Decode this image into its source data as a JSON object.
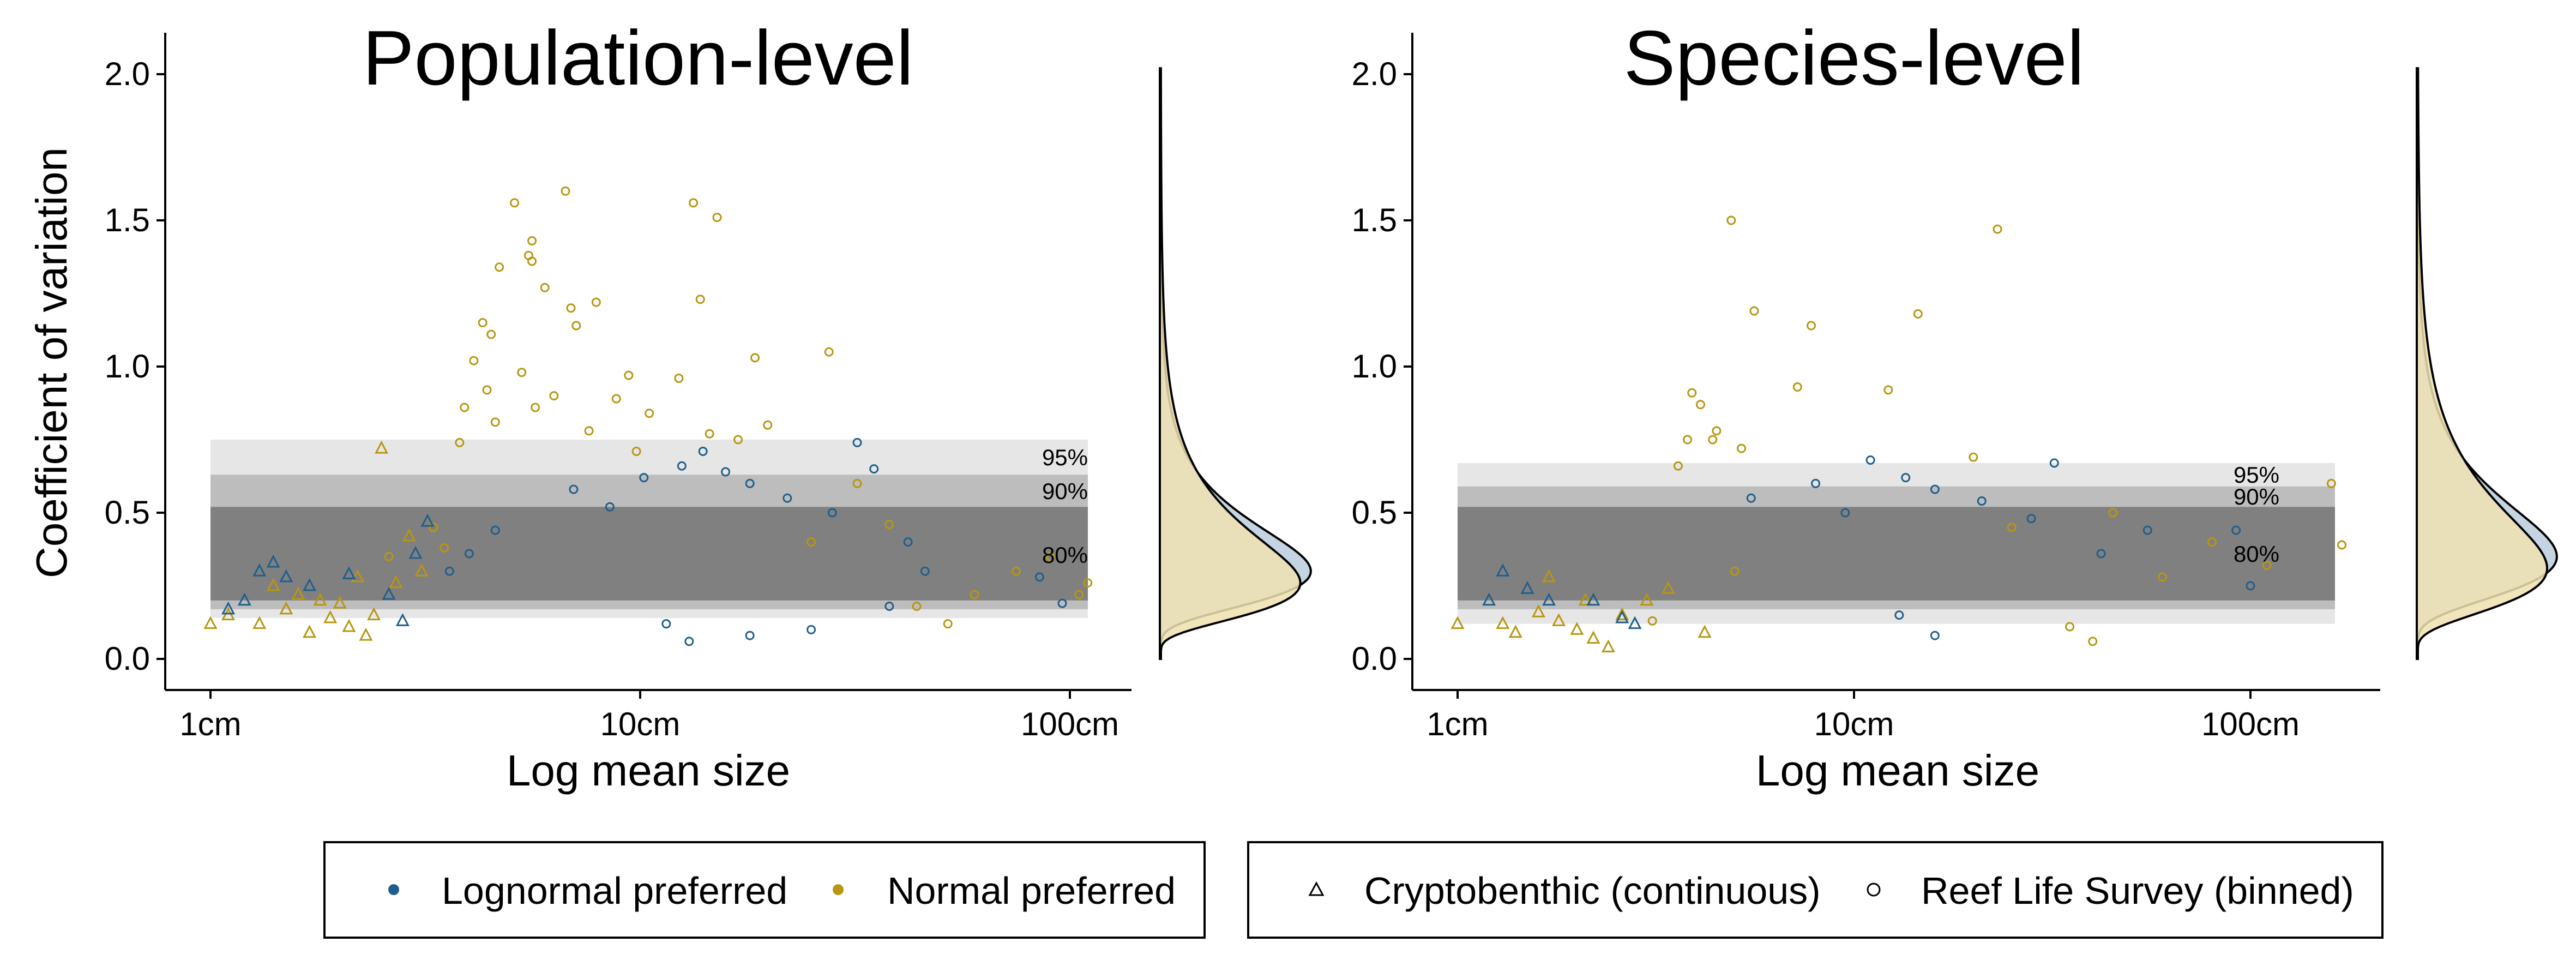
{
  "colors": {
    "lognormal": "#1f5f8b",
    "normal": "#b8960f",
    "band95": "#e6e6e6",
    "band90": "#bdbdbd",
    "band80": "#808080",
    "density_lognormal_fill": "#c5d4e3",
    "density_normal_fill": "#efe0b0",
    "density_overlap_fill": "#c9c9a6"
  },
  "legend": {
    "color_items": [
      {
        "label": "Lognormal preferred",
        "color_key": "lognormal",
        "shape": "dot"
      },
      {
        "label": "Normal preferred",
        "color_key": "normal",
        "shape": "dot"
      }
    ],
    "shape_items": [
      {
        "label": "Cryptobenthic (continuous)",
        "shape": "triangle"
      },
      {
        "label": "Reef Life Survey (binned)",
        "shape": "circle"
      }
    ]
  },
  "chart_data": [
    {
      "type": "scatter",
      "title": "Population-level",
      "xlabel": "Log mean size",
      "ylabel": "Coefficient of variation",
      "x_scale": "log10",
      "xlim": [
        0.9,
        110
      ],
      "ylim": [
        -0.1,
        2.1
      ],
      "x_ticks": [
        1,
        10,
        100
      ],
      "x_tick_labels": [
        "1cm",
        "10cm",
        "100cm"
      ],
      "y_ticks": [
        0,
        0.5,
        1,
        1.5,
        2
      ],
      "y_tick_labels": [
        "0.0",
        "0.5",
        "1.0",
        "1.5",
        "2.0"
      ],
      "grid": false,
      "bands": [
        {
          "label": "95%",
          "ymin": 0.14,
          "ymax": 0.75,
          "color_key": "band95"
        },
        {
          "label": "90%",
          "ymin": 0.17,
          "ymax": 0.63,
          "color_key": "band90"
        },
        {
          "label": "80%",
          "ymin": 0.2,
          "ymax": 0.52,
          "color_key": "band80"
        }
      ],
      "series": [
        {
          "name": "Normal preferred",
          "color_key": "normal",
          "points": [
            [
              5.1,
              1.56,
              "c"
            ],
            [
              6.7,
              1.6,
              "c"
            ],
            [
              13.3,
              1.56,
              "c"
            ],
            [
              15.1,
              1.51,
              "c"
            ],
            [
              5.6,
              1.43,
              "c"
            ],
            [
              5.5,
              1.38,
              "c"
            ],
            [
              5.6,
              1.36,
              "c"
            ],
            [
              4.7,
              1.34,
              "c"
            ],
            [
              6.0,
              1.27,
              "c"
            ],
            [
              7.9,
              1.22,
              "c"
            ],
            [
              13.8,
              1.23,
              "c"
            ],
            [
              6.9,
              1.2,
              "c"
            ],
            [
              4.3,
              1.15,
              "c"
            ],
            [
              4.5,
              1.11,
              "c"
            ],
            [
              7.1,
              1.14,
              "c"
            ],
            [
              18.5,
              1.03,
              "c"
            ],
            [
              27.5,
              1.05,
              "c"
            ],
            [
              4.1,
              1.02,
              "c"
            ],
            [
              5.3,
              0.98,
              "c"
            ],
            [
              9.4,
              0.97,
              "c"
            ],
            [
              12.3,
              0.96,
              "c"
            ],
            [
              4.4,
              0.92,
              "c"
            ],
            [
              6.3,
              0.9,
              "c"
            ],
            [
              8.8,
              0.89,
              "c"
            ],
            [
              3.9,
              0.86,
              "c"
            ],
            [
              5.7,
              0.86,
              "c"
            ],
            [
              10.5,
              0.84,
              "c"
            ],
            [
              19.8,
              0.8,
              "c"
            ],
            [
              4.6,
              0.81,
              "c"
            ],
            [
              7.6,
              0.78,
              "c"
            ],
            [
              14.5,
              0.77,
              "c"
            ],
            [
              16.9,
              0.75,
              "c"
            ],
            [
              3.8,
              0.74,
              "c"
            ],
            [
              9.8,
              0.71,
              "c"
            ],
            [
              2.5,
              0.72,
              "t"
            ],
            [
              1.0,
              0.12,
              "t"
            ],
            [
              1.3,
              0.12,
              "t"
            ],
            [
              1.5,
              0.17,
              "t"
            ],
            [
              1.7,
              0.09,
              "t"
            ],
            [
              1.9,
              0.14,
              "t"
            ],
            [
              2.1,
              0.11,
              "t"
            ],
            [
              2.3,
              0.08,
              "t"
            ],
            [
              2.0,
              0.19,
              "t"
            ],
            [
              1.8,
              0.2,
              "t"
            ],
            [
              1.6,
              0.22,
              "t"
            ],
            [
              2.4,
              0.15,
              "t"
            ],
            [
              2.7,
              0.26,
              "t"
            ],
            [
              2.2,
              0.28,
              "t"
            ],
            [
              1.1,
              0.15,
              "t"
            ],
            [
              1.4,
              0.25,
              "t"
            ],
            [
              2.9,
              0.42,
              "t"
            ],
            [
              3.1,
              0.3,
              "t"
            ],
            [
              2.6,
              0.35,
              "c"
            ],
            [
              3.3,
              0.45,
              "c"
            ],
            [
              3.5,
              0.38,
              "c"
            ],
            [
              44.0,
              0.18,
              "c"
            ],
            [
              52.0,
              0.12,
              "c"
            ],
            [
              60.0,
              0.22,
              "c"
            ],
            [
              75.0,
              0.3,
              "c"
            ],
            [
              110.0,
              0.26,
              "c"
            ],
            [
              105.0,
              0.22,
              "c"
            ],
            [
              90.0,
              0.35,
              "c"
            ],
            [
              38.0,
              0.46,
              "c"
            ],
            [
              32.0,
              0.6,
              "c"
            ],
            [
              25.0,
              0.4,
              "c"
            ]
          ]
        },
        {
          "name": "Lognormal preferred",
          "color_key": "lognormal",
          "points": [
            [
              14.0,
              0.71,
              "c"
            ],
            [
              15.8,
              0.64,
              "c"
            ],
            [
              32.0,
              0.74,
              "c"
            ],
            [
              35.0,
              0.65,
              "c"
            ],
            [
              12.5,
              0.66,
              "c"
            ],
            [
              10.2,
              0.62,
              "c"
            ],
            [
              18.0,
              0.6,
              "c"
            ],
            [
              7.0,
              0.58,
              "c"
            ],
            [
              22.0,
              0.55,
              "c"
            ],
            [
              8.5,
              0.52,
              "c"
            ],
            [
              28.0,
              0.5,
              "c"
            ],
            [
              42.0,
              0.4,
              "c"
            ],
            [
              46.0,
              0.3,
              "c"
            ],
            [
              38.0,
              0.18,
              "c"
            ],
            [
              25.0,
              0.1,
              "c"
            ],
            [
              18.0,
              0.08,
              "c"
            ],
            [
              13.0,
              0.06,
              "c"
            ],
            [
              11.5,
              0.12,
              "c"
            ],
            [
              4.0,
              0.36,
              "c"
            ],
            [
              4.6,
              0.44,
              "c"
            ],
            [
              3.6,
              0.3,
              "c"
            ],
            [
              96.0,
              0.19,
              "c"
            ],
            [
              85.0,
              0.28,
              "c"
            ],
            [
              1.3,
              0.3,
              "t"
            ],
            [
              1.5,
              0.28,
              "t"
            ],
            [
              1.2,
              0.2,
              "t"
            ],
            [
              1.4,
              0.33,
              "t"
            ],
            [
              1.7,
              0.25,
              "t"
            ],
            [
              2.1,
              0.29,
              "t"
            ],
            [
              2.6,
              0.22,
              "t"
            ],
            [
              2.8,
              0.13,
              "t"
            ],
            [
              3.2,
              0.47,
              "t"
            ],
            [
              3.0,
              0.36,
              "t"
            ],
            [
              1.1,
              0.17,
              "t"
            ]
          ]
        }
      ],
      "density": {
        "y_range": [
          0.0,
          2.02
        ],
        "lognormal_peak_cv": 0.3,
        "normal_peak_cv": 0.26
      }
    },
    {
      "type": "scatter",
      "title": "Species-level",
      "xlabel": "Log mean size",
      "ylabel": "",
      "x_scale": "log10",
      "xlim": [
        0.9,
        170
      ],
      "ylim": [
        -0.1,
        2.1
      ],
      "x_ticks": [
        1,
        10,
        100
      ],
      "x_tick_labels": [
        "1cm",
        "10cm",
        "100cm"
      ],
      "y_ticks": [
        0,
        0.5,
        1,
        1.5,
        2
      ],
      "y_tick_labels": [
        "0.0",
        "0.5",
        "1.0",
        "1.5",
        "2.0"
      ],
      "grid": false,
      "bands": [
        {
          "label": "95%",
          "ymin": 0.12,
          "ymax": 0.67,
          "color_key": "band95"
        },
        {
          "label": "90%",
          "ymin": 0.17,
          "ymax": 0.59,
          "color_key": "band90"
        },
        {
          "label": "80%",
          "ymin": 0.2,
          "ymax": 0.52,
          "color_key": "band80"
        }
      ],
      "series": [
        {
          "name": "Normal preferred",
          "color_key": "normal",
          "points": [
            [
              4.9,
              1.5,
              "c"
            ],
            [
              23.0,
              1.47,
              "c"
            ],
            [
              5.6,
              1.19,
              "c"
            ],
            [
              14.5,
              1.18,
              "c"
            ],
            [
              7.8,
              1.14,
              "c"
            ],
            [
              7.2,
              0.93,
              "c"
            ],
            [
              12.2,
              0.92,
              "c"
            ],
            [
              3.9,
              0.91,
              "c"
            ],
            [
              4.1,
              0.87,
              "c"
            ],
            [
              4.5,
              0.78,
              "c"
            ],
            [
              4.4,
              0.75,
              "c"
            ],
            [
              3.8,
              0.75,
              "c"
            ],
            [
              5.2,
              0.72,
              "c"
            ],
            [
              20.0,
              0.69,
              "c"
            ],
            [
              3.6,
              0.66,
              "c"
            ],
            [
              160.0,
              0.6,
              "c"
            ],
            [
              170.0,
              0.39,
              "c"
            ],
            [
              110.0,
              0.32,
              "c"
            ],
            [
              60.0,
              0.28,
              "c"
            ],
            [
              35.0,
              0.11,
              "c"
            ],
            [
              40.0,
              0.06,
              "c"
            ],
            [
              1.0,
              0.12,
              "t"
            ],
            [
              1.3,
              0.12,
              "t"
            ],
            [
              1.4,
              0.09,
              "t"
            ],
            [
              1.6,
              0.16,
              "t"
            ],
            [
              1.8,
              0.13,
              "t"
            ],
            [
              2.0,
              0.1,
              "t"
            ],
            [
              2.2,
              0.07,
              "t"
            ],
            [
              2.4,
              0.04,
              "t"
            ],
            [
              2.6,
              0.15,
              "t"
            ],
            [
              2.1,
              0.2,
              "t"
            ],
            [
              3.0,
              0.2,
              "t"
            ],
            [
              3.4,
              0.24,
              "t"
            ],
            [
              1.7,
              0.28,
              "t"
            ],
            [
              4.2,
              0.09,
              "t"
            ],
            [
              3.1,
              0.13,
              "c"
            ],
            [
              5.0,
              0.3,
              "c"
            ],
            [
              25.0,
              0.45,
              "c"
            ],
            [
              45.0,
              0.5,
              "c"
            ],
            [
              80.0,
              0.4,
              "c"
            ]
          ]
        },
        {
          "name": "Lognormal preferred",
          "color_key": "lognormal",
          "points": [
            [
              11.0,
              0.68,
              "c"
            ],
            [
              32.0,
              0.67,
              "c"
            ],
            [
              13.5,
              0.62,
              "c"
            ],
            [
              8.0,
              0.6,
              "c"
            ],
            [
              16.0,
              0.58,
              "c"
            ],
            [
              5.5,
              0.55,
              "c"
            ],
            [
              21.0,
              0.54,
              "c"
            ],
            [
              9.5,
              0.5,
              "c"
            ],
            [
              28.0,
              0.48,
              "c"
            ],
            [
              55.0,
              0.44,
              "c"
            ],
            [
              92.0,
              0.44,
              "c"
            ],
            [
              42.0,
              0.36,
              "c"
            ],
            [
              100.0,
              0.25,
              "c"
            ],
            [
              16.0,
              0.08,
              "c"
            ],
            [
              13.0,
              0.15,
              "c"
            ],
            [
              1.3,
              0.3,
              "t"
            ],
            [
              1.5,
              0.24,
              "t"
            ],
            [
              1.7,
              0.2,
              "t"
            ],
            [
              2.2,
              0.2,
              "t"
            ],
            [
              2.6,
              0.14,
              "t"
            ],
            [
              2.8,
              0.12,
              "t"
            ],
            [
              1.2,
              0.2,
              "t"
            ]
          ]
        }
      ],
      "density": {
        "y_range": [
          0.0,
          2.02
        ],
        "lognormal_peak_cv": 0.35,
        "normal_peak_cv": 0.31
      }
    }
  ]
}
